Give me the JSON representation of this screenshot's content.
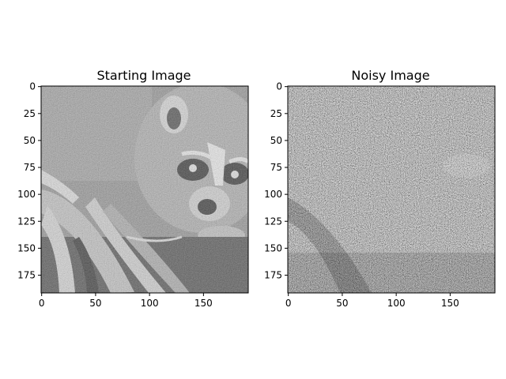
{
  "chart_data": [
    {
      "type": "heatmap",
      "title": "Starting Image",
      "colormap": "gray",
      "image_shape": [
        192,
        192
      ],
      "xlim": [
        0,
        191
      ],
      "ylim": [
        191,
        0
      ],
      "y_inverted": true,
      "xticks": [
        0,
        50,
        100,
        150
      ],
      "yticks": [
        0,
        25,
        50,
        75,
        100,
        125,
        150,
        175
      ],
      "grid": false
    },
    {
      "type": "heatmap",
      "title": "Noisy Image",
      "colormap": "gray",
      "image_shape": [
        192,
        192
      ],
      "xlim": [
        0,
        191
      ],
      "ylim": [
        191,
        0
      ],
      "y_inverted": true,
      "xticks": [
        0,
        50,
        100,
        150
      ],
      "yticks": [
        0,
        25,
        50,
        75,
        100,
        125,
        150,
        175
      ],
      "grid": false
    }
  ]
}
